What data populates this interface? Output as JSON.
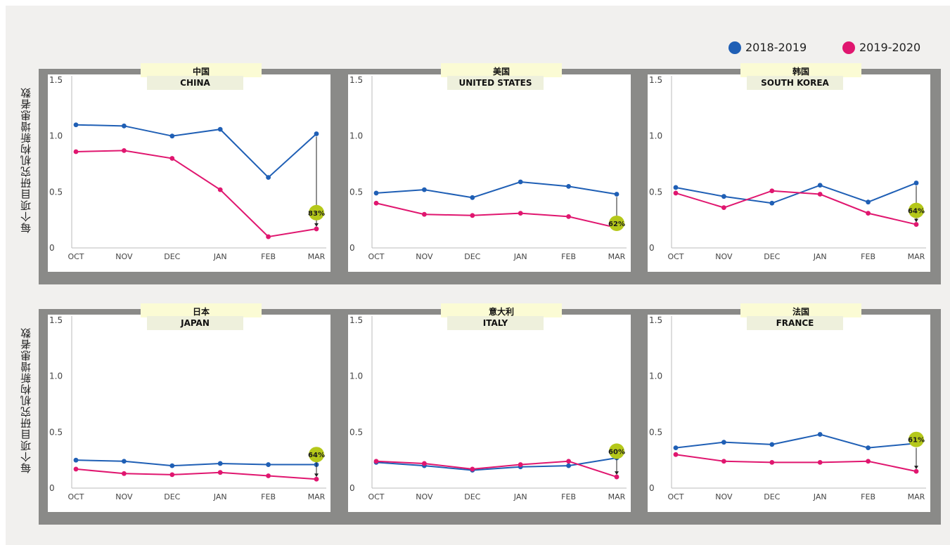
{
  "y_axis_label": "每个项目研究机构新增患者数",
  "legend": [
    {
      "name": "2018-2019",
      "color": "#1f5fb5"
    },
    {
      "name": "2019-2020",
      "color": "#e0166f"
    }
  ],
  "chart_data": [
    {
      "type": "line",
      "title_zh": "中国",
      "title_en": "CHINA",
      "categories": [
        "OCT",
        "NOV",
        "DEC",
        "JAN",
        "FEB",
        "MAR"
      ],
      "yticks": [
        "0",
        "0.5",
        "1.0",
        "1.5"
      ],
      "ylim": [
        0,
        1.5
      ],
      "series": [
        {
          "name": "2018-2019",
          "values": [
            1.1,
            1.09,
            1.0,
            1.06,
            0.63,
            1.02
          ]
        },
        {
          "name": "2019-2020",
          "values": [
            0.86,
            0.87,
            0.8,
            0.52,
            0.1,
            0.17
          ]
        }
      ],
      "annotation": "83%"
    },
    {
      "type": "line",
      "title_zh": "美国",
      "title_en": "UNITED STATES",
      "categories": [
        "OCT",
        "NOV",
        "DEC",
        "JAN",
        "FEB",
        "MAR"
      ],
      "yticks": [
        "0",
        "0.5",
        "1.0",
        "1.5"
      ],
      "ylim": [
        0,
        1.5
      ],
      "series": [
        {
          "name": "2018-2019",
          "values": [
            0.49,
            0.52,
            0.45,
            0.59,
            0.55,
            0.48
          ]
        },
        {
          "name": "2019-2020",
          "values": [
            0.4,
            0.3,
            0.29,
            0.31,
            0.28,
            0.18
          ]
        }
      ],
      "annotation": "62%"
    },
    {
      "type": "line",
      "title_zh": "韩国",
      "title_en": "SOUTH KOREA",
      "categories": [
        "OCT",
        "NOV",
        "DEC",
        "JAN",
        "FEB",
        "MAR"
      ],
      "yticks": [
        "0",
        "0.5",
        "1.0",
        "1.5"
      ],
      "ylim": [
        0,
        1.5
      ],
      "series": [
        {
          "name": "2018-2019",
          "values": [
            0.54,
            0.46,
            0.4,
            0.56,
            0.41,
            0.58
          ]
        },
        {
          "name": "2019-2020",
          "values": [
            0.49,
            0.36,
            0.51,
            0.48,
            0.31,
            0.21
          ]
        }
      ],
      "annotation": "64%"
    },
    {
      "type": "line",
      "title_zh": "日本",
      "title_en": "JAPAN",
      "categories": [
        "OCT",
        "NOV",
        "DEC",
        "JAN",
        "FEB",
        "MAR"
      ],
      "yticks": [
        "0",
        "0.5",
        "1.0",
        "1.5"
      ],
      "ylim": [
        0,
        1.5
      ],
      "series": [
        {
          "name": "2018-2019",
          "values": [
            0.25,
            0.24,
            0.2,
            0.22,
            0.21,
            0.21
          ]
        },
        {
          "name": "2019-2020",
          "values": [
            0.17,
            0.13,
            0.12,
            0.14,
            0.11,
            0.08
          ]
        }
      ],
      "annotation": "64%"
    },
    {
      "type": "line",
      "title_zh": "意大利",
      "title_en": "ITALY",
      "categories": [
        "OCT",
        "NOV",
        "DEC",
        "JAN",
        "FEB",
        "MAR"
      ],
      "yticks": [
        "0",
        "0.5",
        "1.0",
        "1.5"
      ],
      "ylim": [
        0,
        1.5
      ],
      "series": [
        {
          "name": "2018-2019",
          "values": [
            0.23,
            0.2,
            0.16,
            0.19,
            0.2,
            0.27
          ]
        },
        {
          "name": "2019-2020",
          "values": [
            0.24,
            0.22,
            0.17,
            0.21,
            0.24,
            0.1
          ]
        }
      ],
      "annotation": "60%"
    },
    {
      "type": "line",
      "title_zh": "法国",
      "title_en": "FRANCE",
      "categories": [
        "OCT",
        "NOV",
        "DEC",
        "JAN",
        "FEB",
        "MAR"
      ],
      "yticks": [
        "0",
        "0.5",
        "1.0",
        "1.5"
      ],
      "ylim": [
        0,
        1.5
      ],
      "series": [
        {
          "name": "2018-2019",
          "values": [
            0.36,
            0.41,
            0.39,
            0.48,
            0.36,
            0.4
          ]
        },
        {
          "name": "2019-2020",
          "values": [
            0.3,
            0.24,
            0.23,
            0.23,
            0.24,
            0.15
          ]
        }
      ],
      "annotation": "61%"
    }
  ]
}
